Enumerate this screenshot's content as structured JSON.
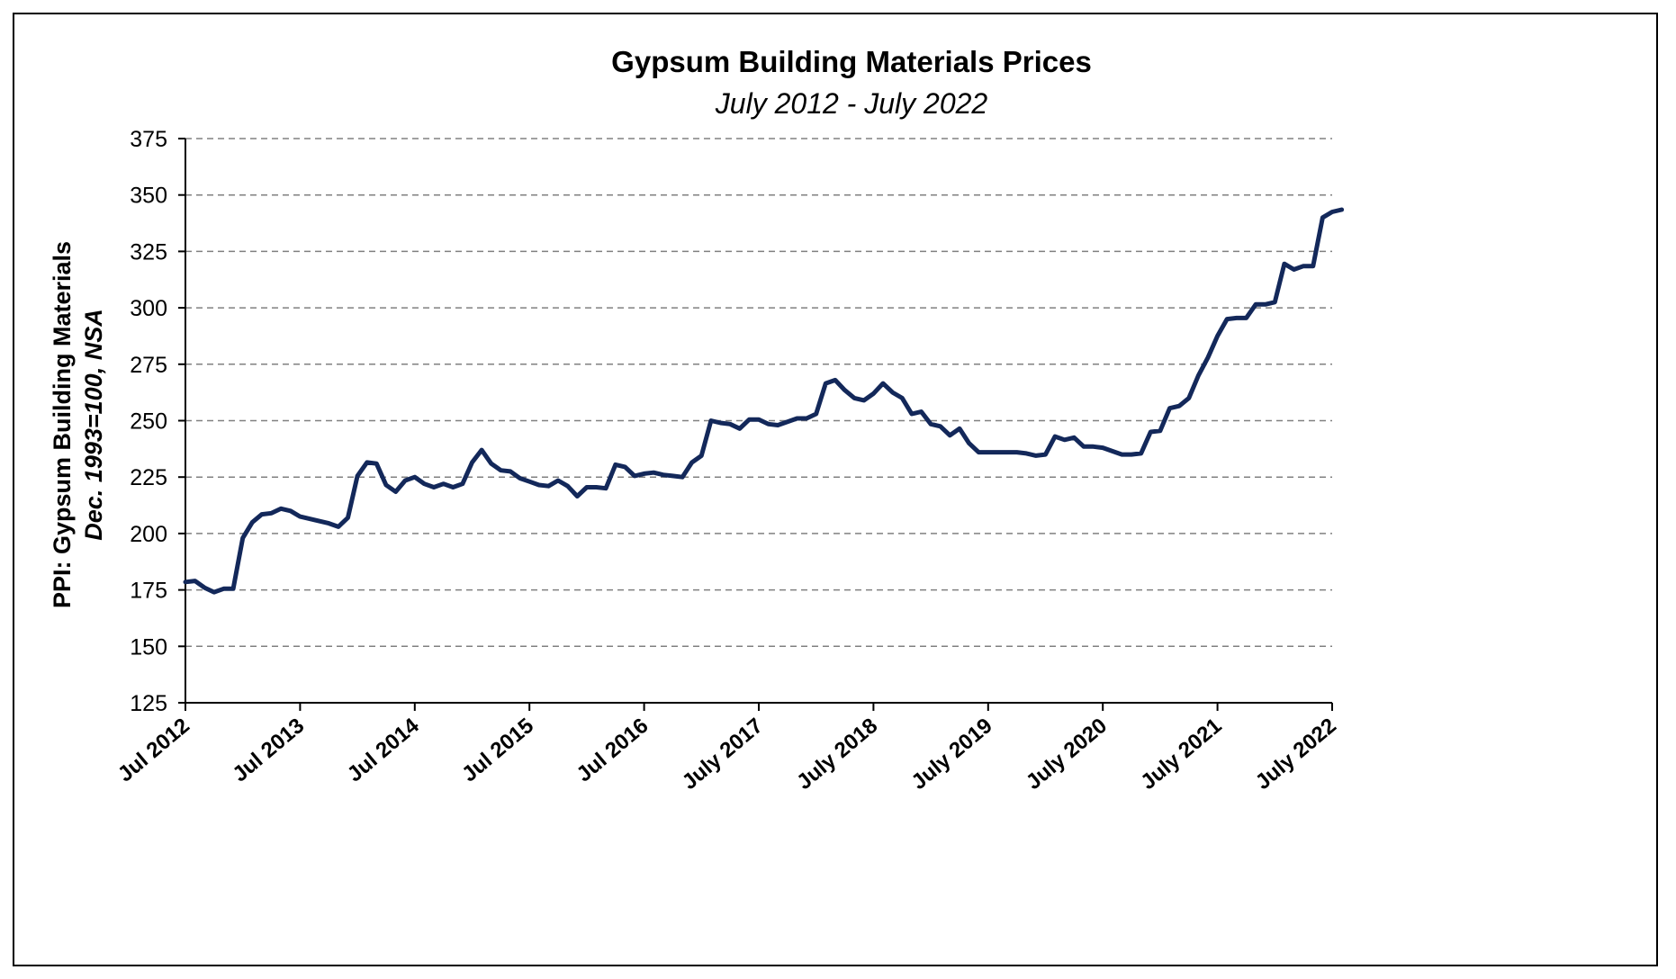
{
  "chart_data": {
    "type": "line",
    "title": "Gypsum Building Materials Prices",
    "subtitle": "July 2012 - July 2022",
    "ylabel": "PPI: Gypsum Building Materials",
    "ylabel_sub": "Dec. 1993=100, NSA",
    "xlabel": "",
    "ylim": [
      125,
      375
    ],
    "yticks": [
      125,
      150,
      175,
      200,
      225,
      250,
      275,
      300,
      325,
      350,
      375
    ],
    "xlim": [
      0,
      120
    ],
    "xticks": [
      {
        "pos": 0,
        "label": "Jul 2012"
      },
      {
        "pos": 12,
        "label": "Jul 2013"
      },
      {
        "pos": 24,
        "label": "Jul 2014"
      },
      {
        "pos": 36,
        "label": "Jul 2015"
      },
      {
        "pos": 48,
        "label": "Jul 2016"
      },
      {
        "pos": 60,
        "label": "July 2017"
      },
      {
        "pos": 72,
        "label": "July 2018"
      },
      {
        "pos": 84,
        "label": "July 2019"
      },
      {
        "pos": 96,
        "label": "July 2020"
      },
      {
        "pos": 108,
        "label": "July 2021"
      },
      {
        "pos": 120,
        "label": "July 2022"
      }
    ],
    "grid": "horizontal dashed",
    "legend": "none",
    "series": [
      {
        "color": "#13285a",
        "values": [
          178.5,
          179,
          176,
          174,
          175.5,
          175.5,
          198,
          205,
          208.5,
          209,
          211,
          210,
          207.5,
          206.5,
          205.5,
          204.5,
          203,
          207,
          225.5,
          231.5,
          231,
          221.5,
          218.5,
          223.5,
          225,
          222,
          220.5,
          222,
          220.5,
          222,
          231.5,
          237,
          231,
          228,
          227.5,
          224.5,
          223,
          221.5,
          221,
          223.5,
          221,
          216.5,
          220.5,
          220.5,
          220,
          230.5,
          229.5,
          225.5,
          226.5,
          227,
          226,
          225.5,
          225,
          231.5,
          234.5,
          250,
          249,
          248.5,
          246.5,
          250.5,
          250.5,
          248.5,
          248,
          249.5,
          251,
          251,
          253,
          266.5,
          268,
          263.5,
          260,
          259,
          262,
          266.5,
          262.5,
          260,
          253,
          254,
          248.5,
          247.5,
          243.5,
          246.5,
          240,
          236,
          236,
          236,
          236,
          236,
          235.5,
          234.5,
          235,
          243,
          241.5,
          242.5,
          238.5,
          238.5,
          238,
          236.5,
          235,
          235,
          235.5,
          245,
          245.5,
          255.5,
          256.5,
          260,
          270,
          278,
          287.5,
          295,
          295.5,
          295.5,
          301.5,
          301.5,
          302.5,
          319.5,
          317,
          318.5,
          318.5,
          340,
          342.5,
          343.5
        ]
      }
    ]
  }
}
